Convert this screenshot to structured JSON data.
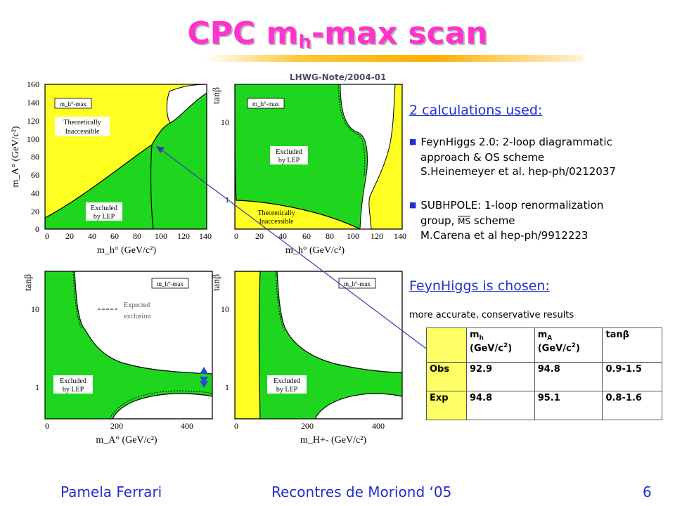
{
  "title": {
    "main": "CPC m",
    "sub": "h",
    "suffix": "-max scan"
  },
  "note": "LHWG-Note/2004-01",
  "plots": {
    "scenario_label": "m_h°-max",
    "excluded_label": [
      "Excluded",
      "by LEP"
    ],
    "theoretically_label": [
      "Theoretically",
      "Inaccessible"
    ],
    "expected_label": [
      "Expected",
      "exclusion"
    ],
    "p1": {
      "xlabel": "m_h° (GeV/c²)",
      "ylabel": "m_A° (GeV/c²)",
      "xticks": [
        "0",
        "20",
        "40",
        "60",
        "80",
        "100",
        "120",
        "140"
      ],
      "yticks": [
        "0",
        "20",
        "40",
        "60",
        "80",
        "100",
        "120",
        "140",
        "160"
      ]
    },
    "p2": {
      "xlabel": "m_h° (GeV/c²)",
      "ylabel": "tanβ",
      "xticks": [
        "0",
        "20",
        "40",
        "60",
        "80",
        "100",
        "120",
        "140"
      ],
      "yticks": [
        "1",
        "10"
      ]
    },
    "p3": {
      "xlabel": "m_A° (GeV/c²)",
      "ylabel": "tanβ",
      "xticks": [
        "0",
        "200",
        "400"
      ],
      "yticks": [
        "1",
        "10"
      ]
    },
    "p4": {
      "xlabel": "m_H+- (GeV/c²)",
      "ylabel": "tanβ",
      "xticks": [
        "0",
        "200",
        "400"
      ],
      "yticks": [
        "1",
        "10"
      ]
    }
  },
  "calc": {
    "heading": "2 calculations used:",
    "b1": [
      "FeynHiggs 2.0:  2-loop diagrammatic",
      "approach & OS scheme",
      "S.Heinemeyer et al. hep-ph/0212037"
    ],
    "b2": [
      "SUBHPOLE: 1-loop renormalization",
      "group,",
      "MS",
      "scheme",
      "M.Carena et al hep-ph/9912223"
    ]
  },
  "chosen": {
    "heading": "FeynHiggs is chosen:",
    "sub": "more accurate, conservative results"
  },
  "table": {
    "header": [
      "",
      "mh (GeV/c²)",
      "mA (GeV/c²)",
      "tanβ"
    ],
    "h1a": "m",
    "h1b": "h",
    "h1c": "(GeV/c",
    "h2a": "m",
    "h2b": "A",
    "h2c": "(GeV/c",
    "h3": "tanβ",
    "rows": [
      {
        "label": "Obs",
        "mh": "92.9",
        "mA": "94.8",
        "tanb": "0.9-1.5"
      },
      {
        "label": "Exp",
        "mh": "94.8",
        "mA": "95.1",
        "tanb": "0.8-1.6"
      }
    ]
  },
  "footer": {
    "author": "Pamela Ferrari",
    "conference": "Recontres de Moriond ‘05",
    "page": "6"
  },
  "colors": {
    "excluded": "#1fd61f",
    "inaccessible": "#ffff22",
    "accent": "#1f2fd0",
    "title": "#ff33cc"
  }
}
